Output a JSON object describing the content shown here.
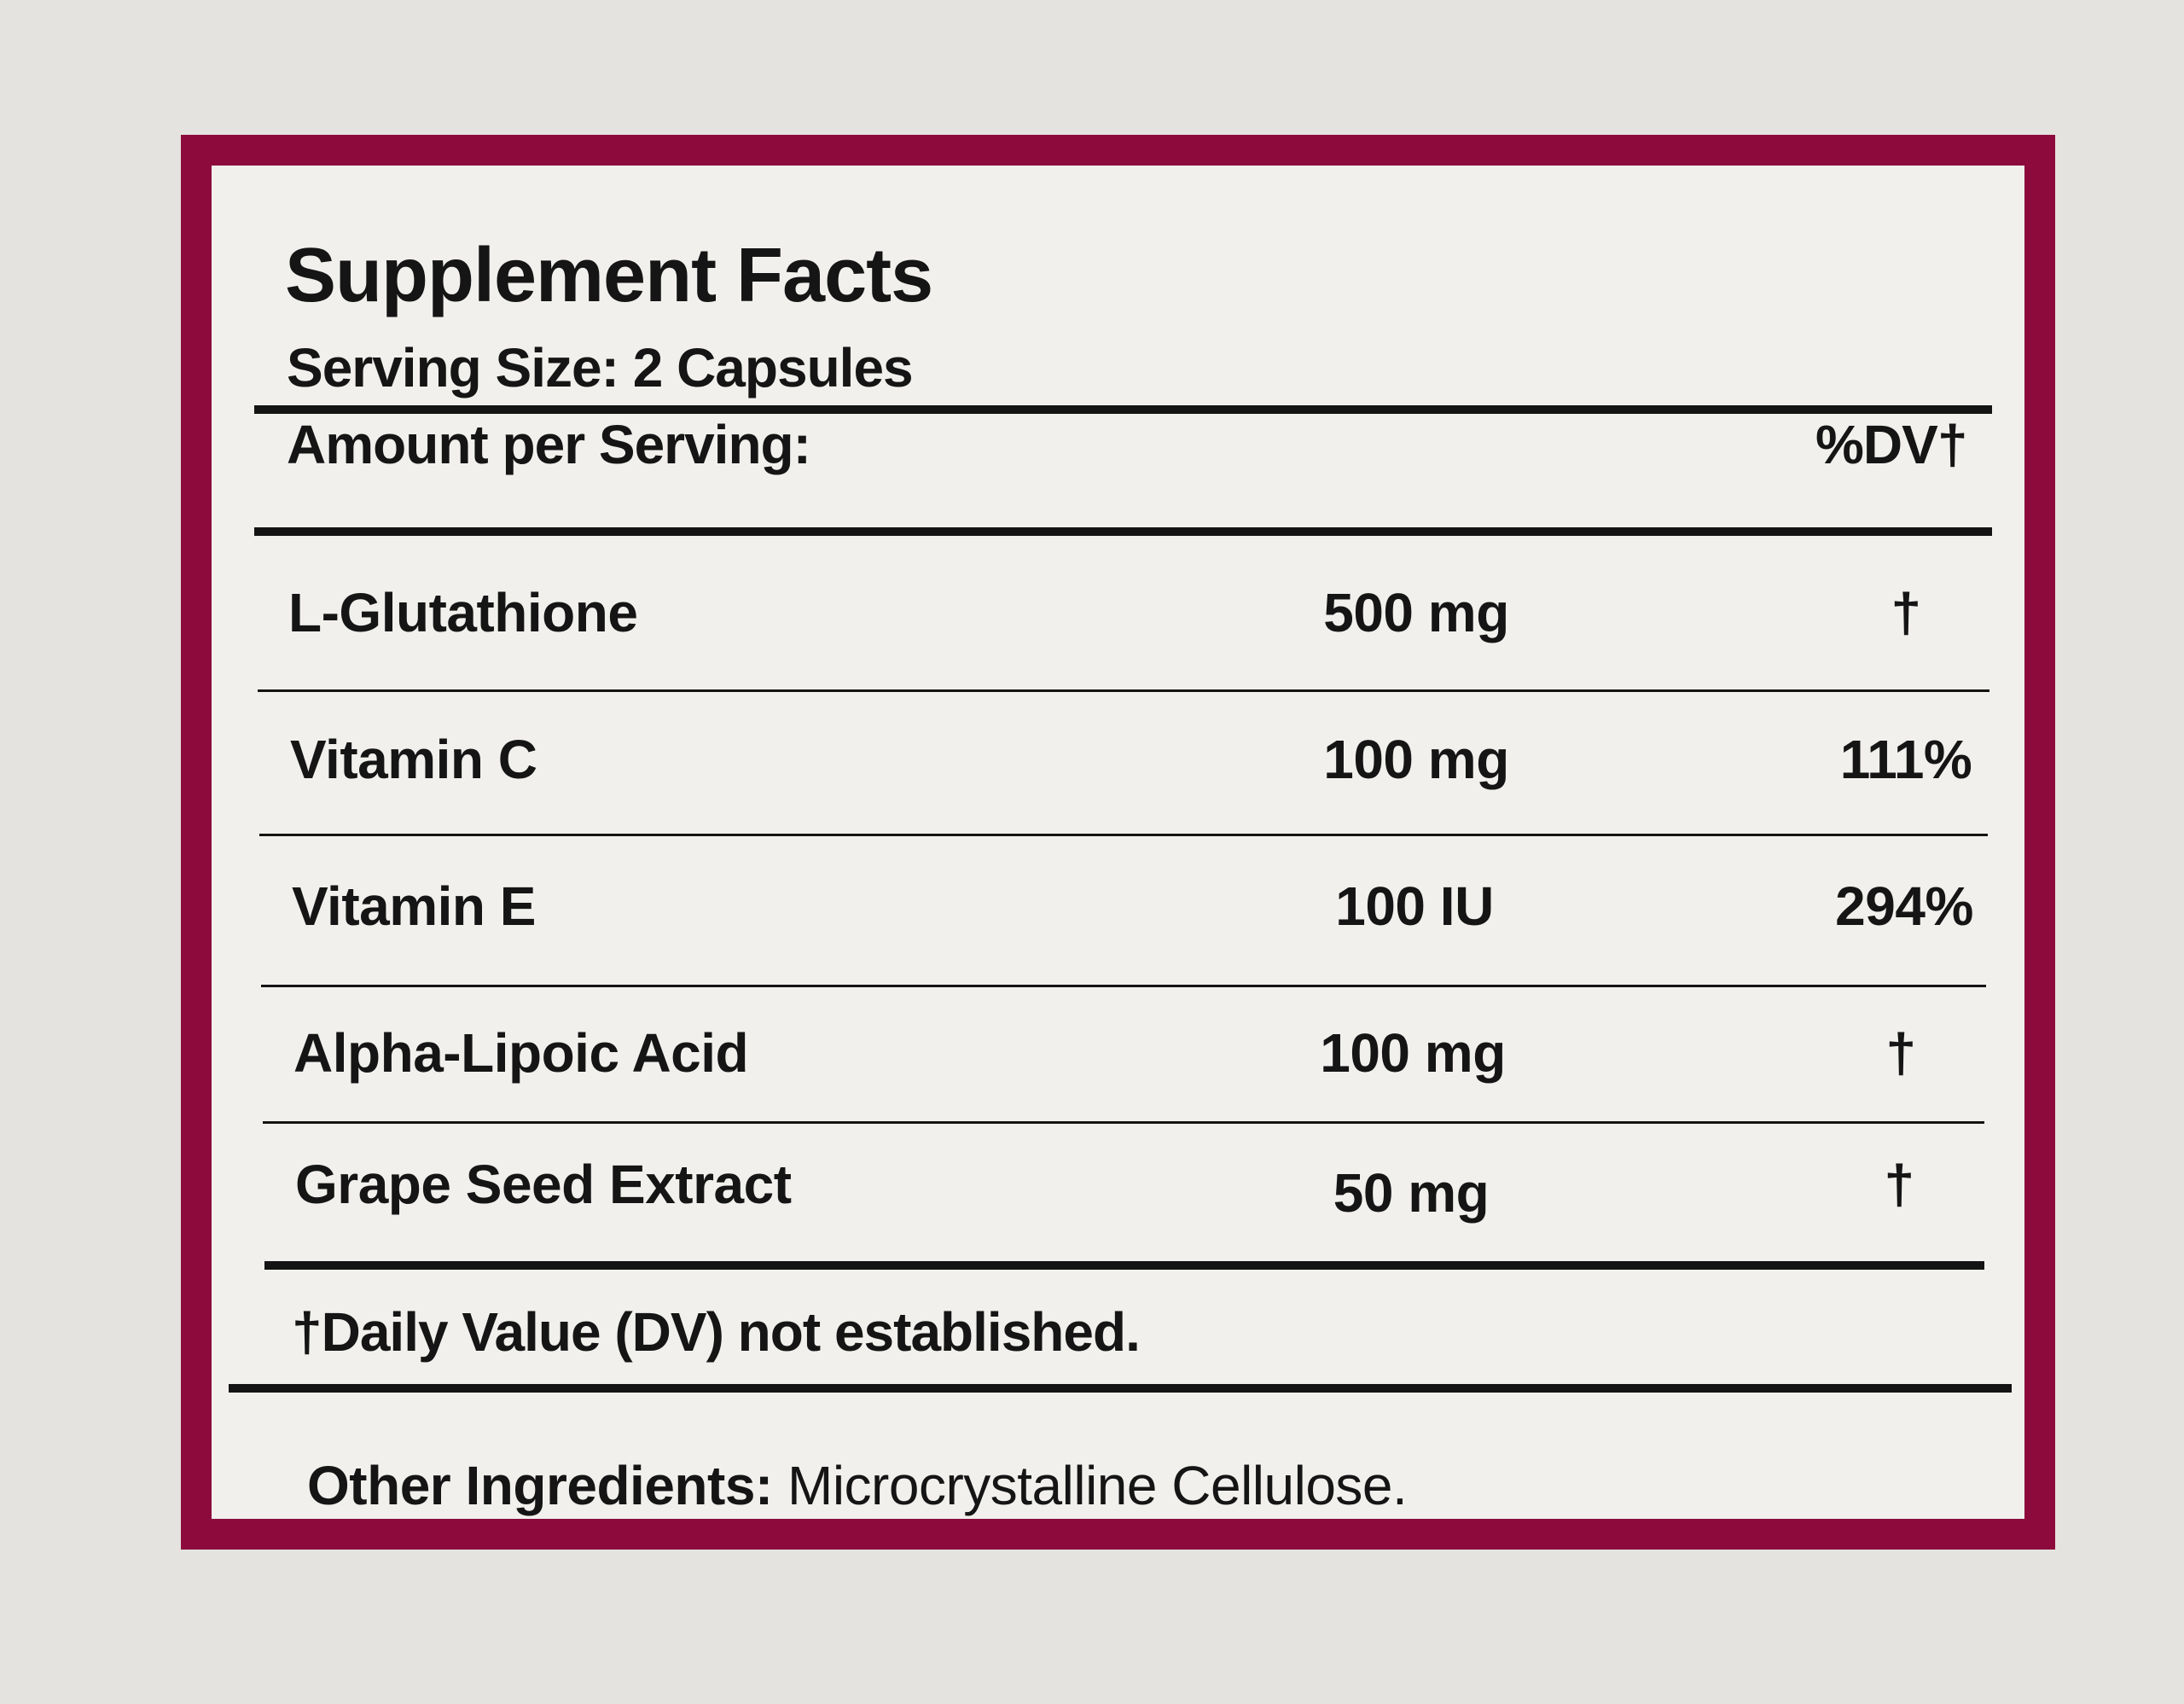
{
  "label": {
    "title": "Supplement Facts",
    "serving_size": "Serving Size: 2 Capsules",
    "header_amount": "Amount per Serving:",
    "header_dv": "%DV†",
    "rows": [
      {
        "name": "L-Glutathione",
        "amount": "500 mg",
        "dv": "†"
      },
      {
        "name": "Vitamin C",
        "amount": "100 mg",
        "dv": "111%"
      },
      {
        "name": "Vitamin E",
        "amount": "100 IU",
        "dv": "294%"
      },
      {
        "name": "Alpha-Lipoic Acid",
        "amount": "100 mg",
        "dv": "†"
      },
      {
        "name": "Grape Seed Extract",
        "amount": "50 mg",
        "dv": "†"
      }
    ],
    "footnote": "†Daily Value (DV) not established.",
    "other_label": "Other Ingredients:",
    "other_value": " Microcrystalline Cellulose."
  },
  "colors": {
    "border": "#8c0b3c",
    "background": "#e4e3e0",
    "panel": "#f1f0ed"
  }
}
